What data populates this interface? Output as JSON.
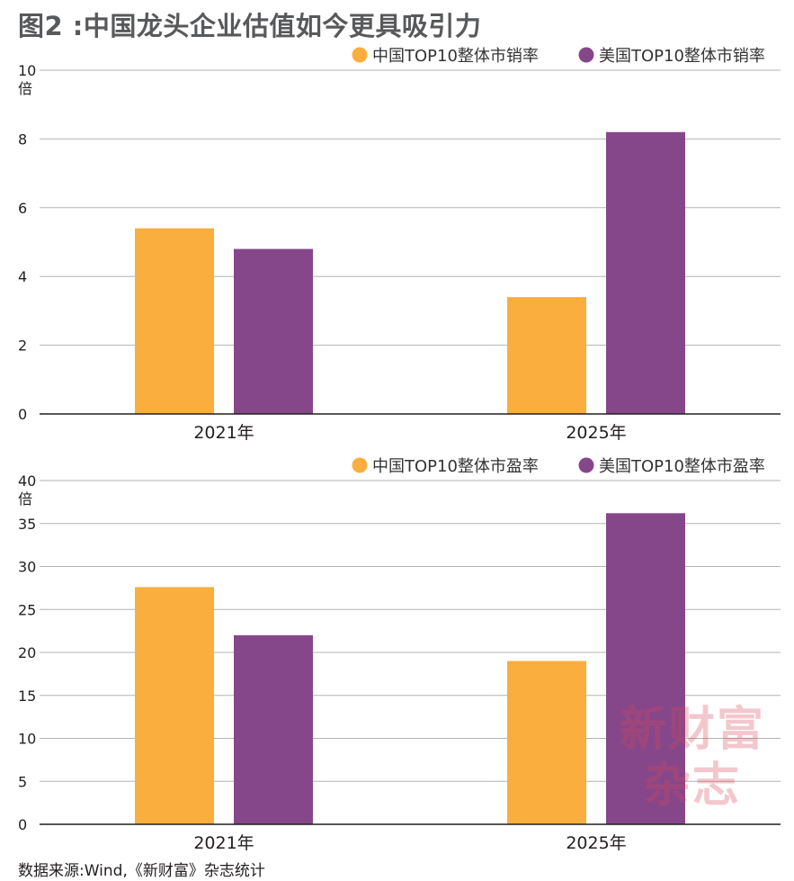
{
  "title": "图2 :中国龙头企业估值如今更具吸引力",
  "source": "数据来源:Wind,《新财富》杂志统计",
  "watermark": {
    "line1": "新财富",
    "line2": "杂志"
  },
  "colors": {
    "china": "#f9ae3d",
    "usa": "#86478a",
    "grid": "#b3b3b3",
    "axis": "#231f20"
  },
  "chart_data": [
    {
      "type": "bar",
      "categories": [
        "2021年",
        "2025年"
      ],
      "series": [
        {
          "name": "中国TOP10整体市销率",
          "values": [
            5.4,
            3.4
          ]
        },
        {
          "name": "美国TOP10整体市销率",
          "values": [
            4.8,
            8.2
          ]
        }
      ],
      "ylim": [
        0,
        10
      ],
      "yticks": [
        0,
        2,
        4,
        6,
        8,
        10
      ],
      "yunit": "倍",
      "grid": true,
      "legend": "top-right"
    },
    {
      "type": "bar",
      "categories": [
        "2021年",
        "2025年"
      ],
      "series": [
        {
          "name": "中国TOP10整体市盈率",
          "values": [
            27.6,
            19.0
          ]
        },
        {
          "name": "美国TOP10整体市盈率",
          "values": [
            22.0,
            36.2
          ]
        }
      ],
      "ylim": [
        0,
        40
      ],
      "yticks": [
        0,
        5,
        10,
        15,
        20,
        25,
        30,
        35,
        40
      ],
      "yunit": "倍",
      "grid": true,
      "legend": "top-right"
    }
  ]
}
